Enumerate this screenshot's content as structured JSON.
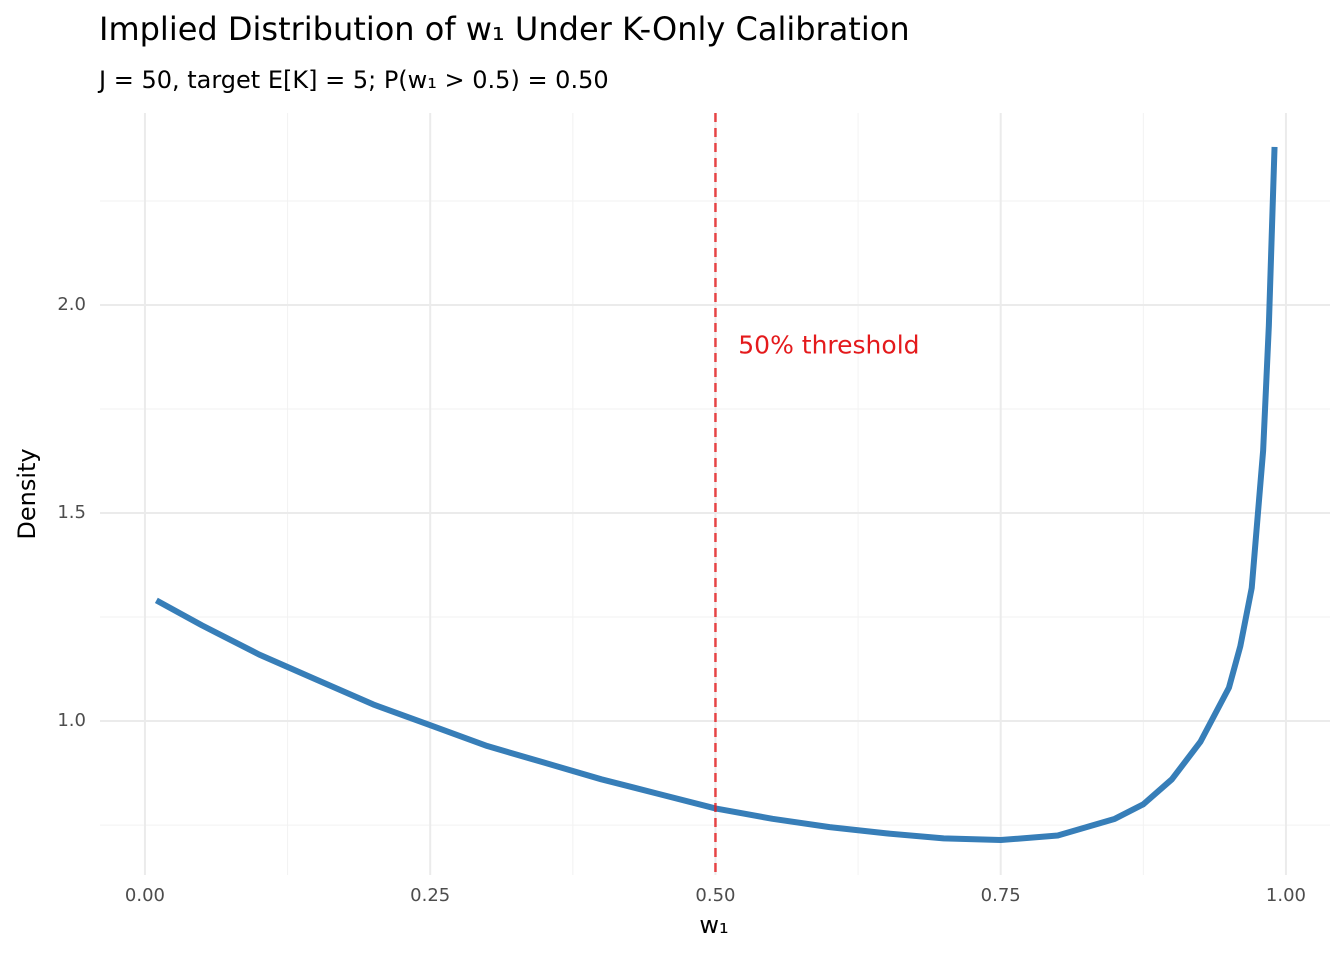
{
  "chart_data": {
    "type": "line",
    "title": "Implied Distribution of w₁ Under K-Only Calibration",
    "subtitle": "J = 50, target E[K] = 5; P(w₁ > 0.5) = 0.50",
    "x_label": "w₁",
    "y_label": "Density",
    "x": [
      0.01,
      0.05,
      0.1,
      0.15,
      0.2,
      0.25,
      0.3,
      0.35,
      0.4,
      0.45,
      0.5,
      0.55,
      0.6,
      0.65,
      0.7,
      0.75,
      0.8,
      0.85,
      0.875,
      0.9,
      0.925,
      0.95,
      0.96,
      0.97,
      0.98,
      0.985,
      0.99
    ],
    "series": [
      {
        "name": "density",
        "color": "#377eb8",
        "values": [
          1.29,
          1.23,
          1.16,
          1.1,
          1.04,
          0.99,
          0.94,
          0.9,
          0.86,
          0.825,
          0.79,
          0.765,
          0.745,
          0.73,
          0.718,
          0.714,
          0.725,
          0.765,
          0.8,
          0.86,
          0.95,
          1.08,
          1.18,
          1.32,
          1.65,
          1.95,
          2.38
        ]
      }
    ],
    "vline": {
      "x": 0.5,
      "color": "#e41a1c"
    },
    "annotation": {
      "text": "50% threshold",
      "x": 0.52,
      "y": 1.9,
      "color": "#e41a1c"
    },
    "xlim": [
      -0.0394,
      1.0386
    ],
    "ylim": [
      0.63,
      2.4615
    ],
    "xticks": [
      {
        "value": 0,
        "label": "0.00"
      },
      {
        "value": 0.25,
        "label": "0.25"
      },
      {
        "value": 0.5,
        "label": "0.50"
      },
      {
        "value": 0.75,
        "label": "0.75"
      },
      {
        "value": 1,
        "label": "1.00"
      }
    ],
    "yticks": [
      {
        "value": 1,
        "label": "1.0"
      },
      {
        "value": 1.5,
        "label": "1.5"
      },
      {
        "value": 2,
        "label": "2.0"
      }
    ],
    "xminor": [
      0.125,
      0.375,
      0.625,
      0.875
    ],
    "yminor": [
      0.75,
      1.25,
      1.75,
      2.25
    ],
    "grid": true
  }
}
